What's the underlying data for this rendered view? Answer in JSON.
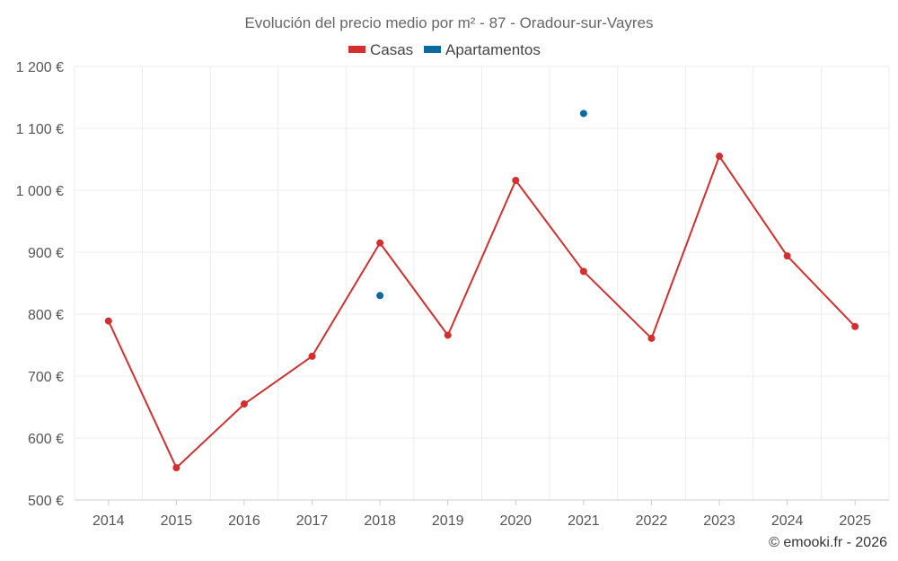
{
  "chart_data": {
    "type": "line",
    "title": "Evolución del precio medio por m² - 87 - Oradour-sur-Vayres",
    "categories": [
      "2014",
      "2015",
      "2016",
      "2017",
      "2018",
      "2019",
      "2020",
      "2021",
      "2022",
      "2023",
      "2024",
      "2025"
    ],
    "ylim": [
      500,
      1200
    ],
    "yticks": [
      500,
      600,
      700,
      800,
      900,
      1000,
      1100,
      1200
    ],
    "ytick_labels": [
      "500 €",
      "600 €",
      "700 €",
      "800 €",
      "900 €",
      "1 000 €",
      "1 100 €",
      "1 200 €"
    ],
    "grid": true,
    "legend_position": "top-center",
    "series": [
      {
        "name": "Casas",
        "color": "#d32f2f",
        "values": [
          789,
          552,
          655,
          732,
          915,
          766,
          1016,
          869,
          761,
          1055,
          894,
          780
        ]
      },
      {
        "name": "Apartamentos",
        "color": "#0d6aa0",
        "values": [
          null,
          null,
          null,
          null,
          830,
          null,
          null,
          1124,
          null,
          null,
          null,
          null
        ]
      }
    ],
    "credit": "© emooki.fr - 2026"
  }
}
